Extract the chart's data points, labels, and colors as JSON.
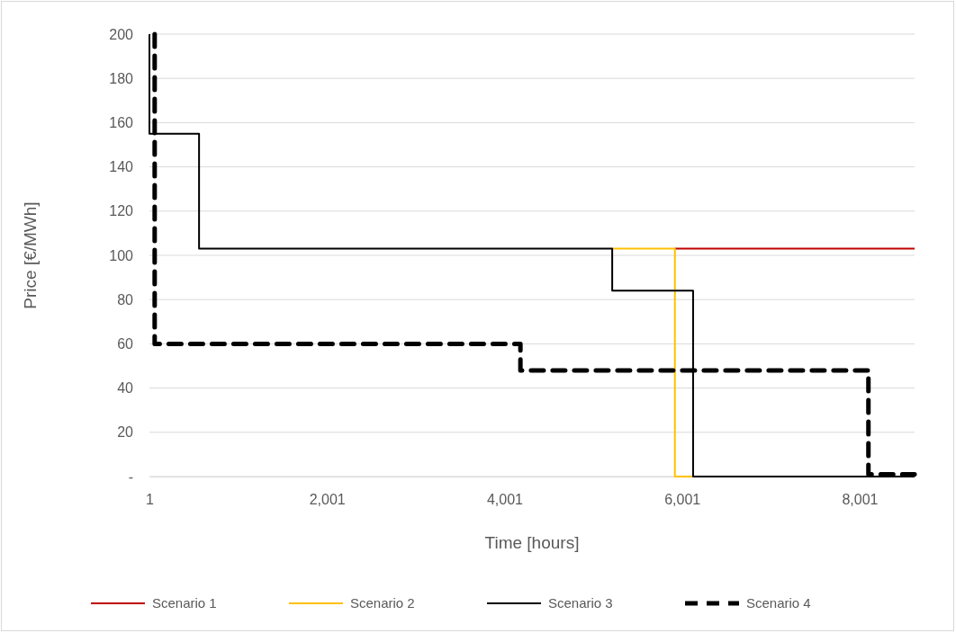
{
  "chart_data": {
    "type": "step",
    "xlabel": "Time [hours]",
    "ylabel": "Price [€/MWh]",
    "xlim": [
      1,
      8620
    ],
    "ylim": [
      0,
      200
    ],
    "xticks": [
      1,
      {
        "value": 2001,
        "label": "2,001"
      },
      {
        "value": 4001,
        "label": "4,001"
      },
      {
        "value": 6001,
        "label": "6,001"
      },
      {
        "value": 8001,
        "label": "8,001"
      }
    ],
    "yticks": [
      {
        "value": 0,
        "label": "-"
      },
      20,
      40,
      60,
      80,
      100,
      120,
      140,
      160,
      180,
      200
    ],
    "grid": "y",
    "legend": "bottom",
    "marker": "none",
    "series": [
      {
        "name": "Scenario 1",
        "color": "#c00000",
        "line_style": "solid",
        "x": [
          5920,
          8620
        ],
        "values": [
          103,
          103
        ]
      },
      {
        "name": "Scenario 2",
        "color": "#ffc000",
        "line_style": "solid",
        "x": [
          5214,
          5920,
          6125
        ],
        "values": [
          103,
          0,
          0
        ]
      },
      {
        "name": "Scenario 3",
        "color": "#000000",
        "line_style": "solid",
        "x": [
          1,
          1,
          560,
          5214,
          6125,
          8620
        ],
        "values": [
          200,
          155,
          103,
          84,
          0,
          0
        ]
      },
      {
        "name": "Scenario 4",
        "color": "#000000",
        "line_style": "dashed",
        "x": [
          60,
          60,
          4180,
          8100,
          8620
        ],
        "values": [
          200,
          60,
          48,
          1,
          1
        ]
      }
    ]
  }
}
